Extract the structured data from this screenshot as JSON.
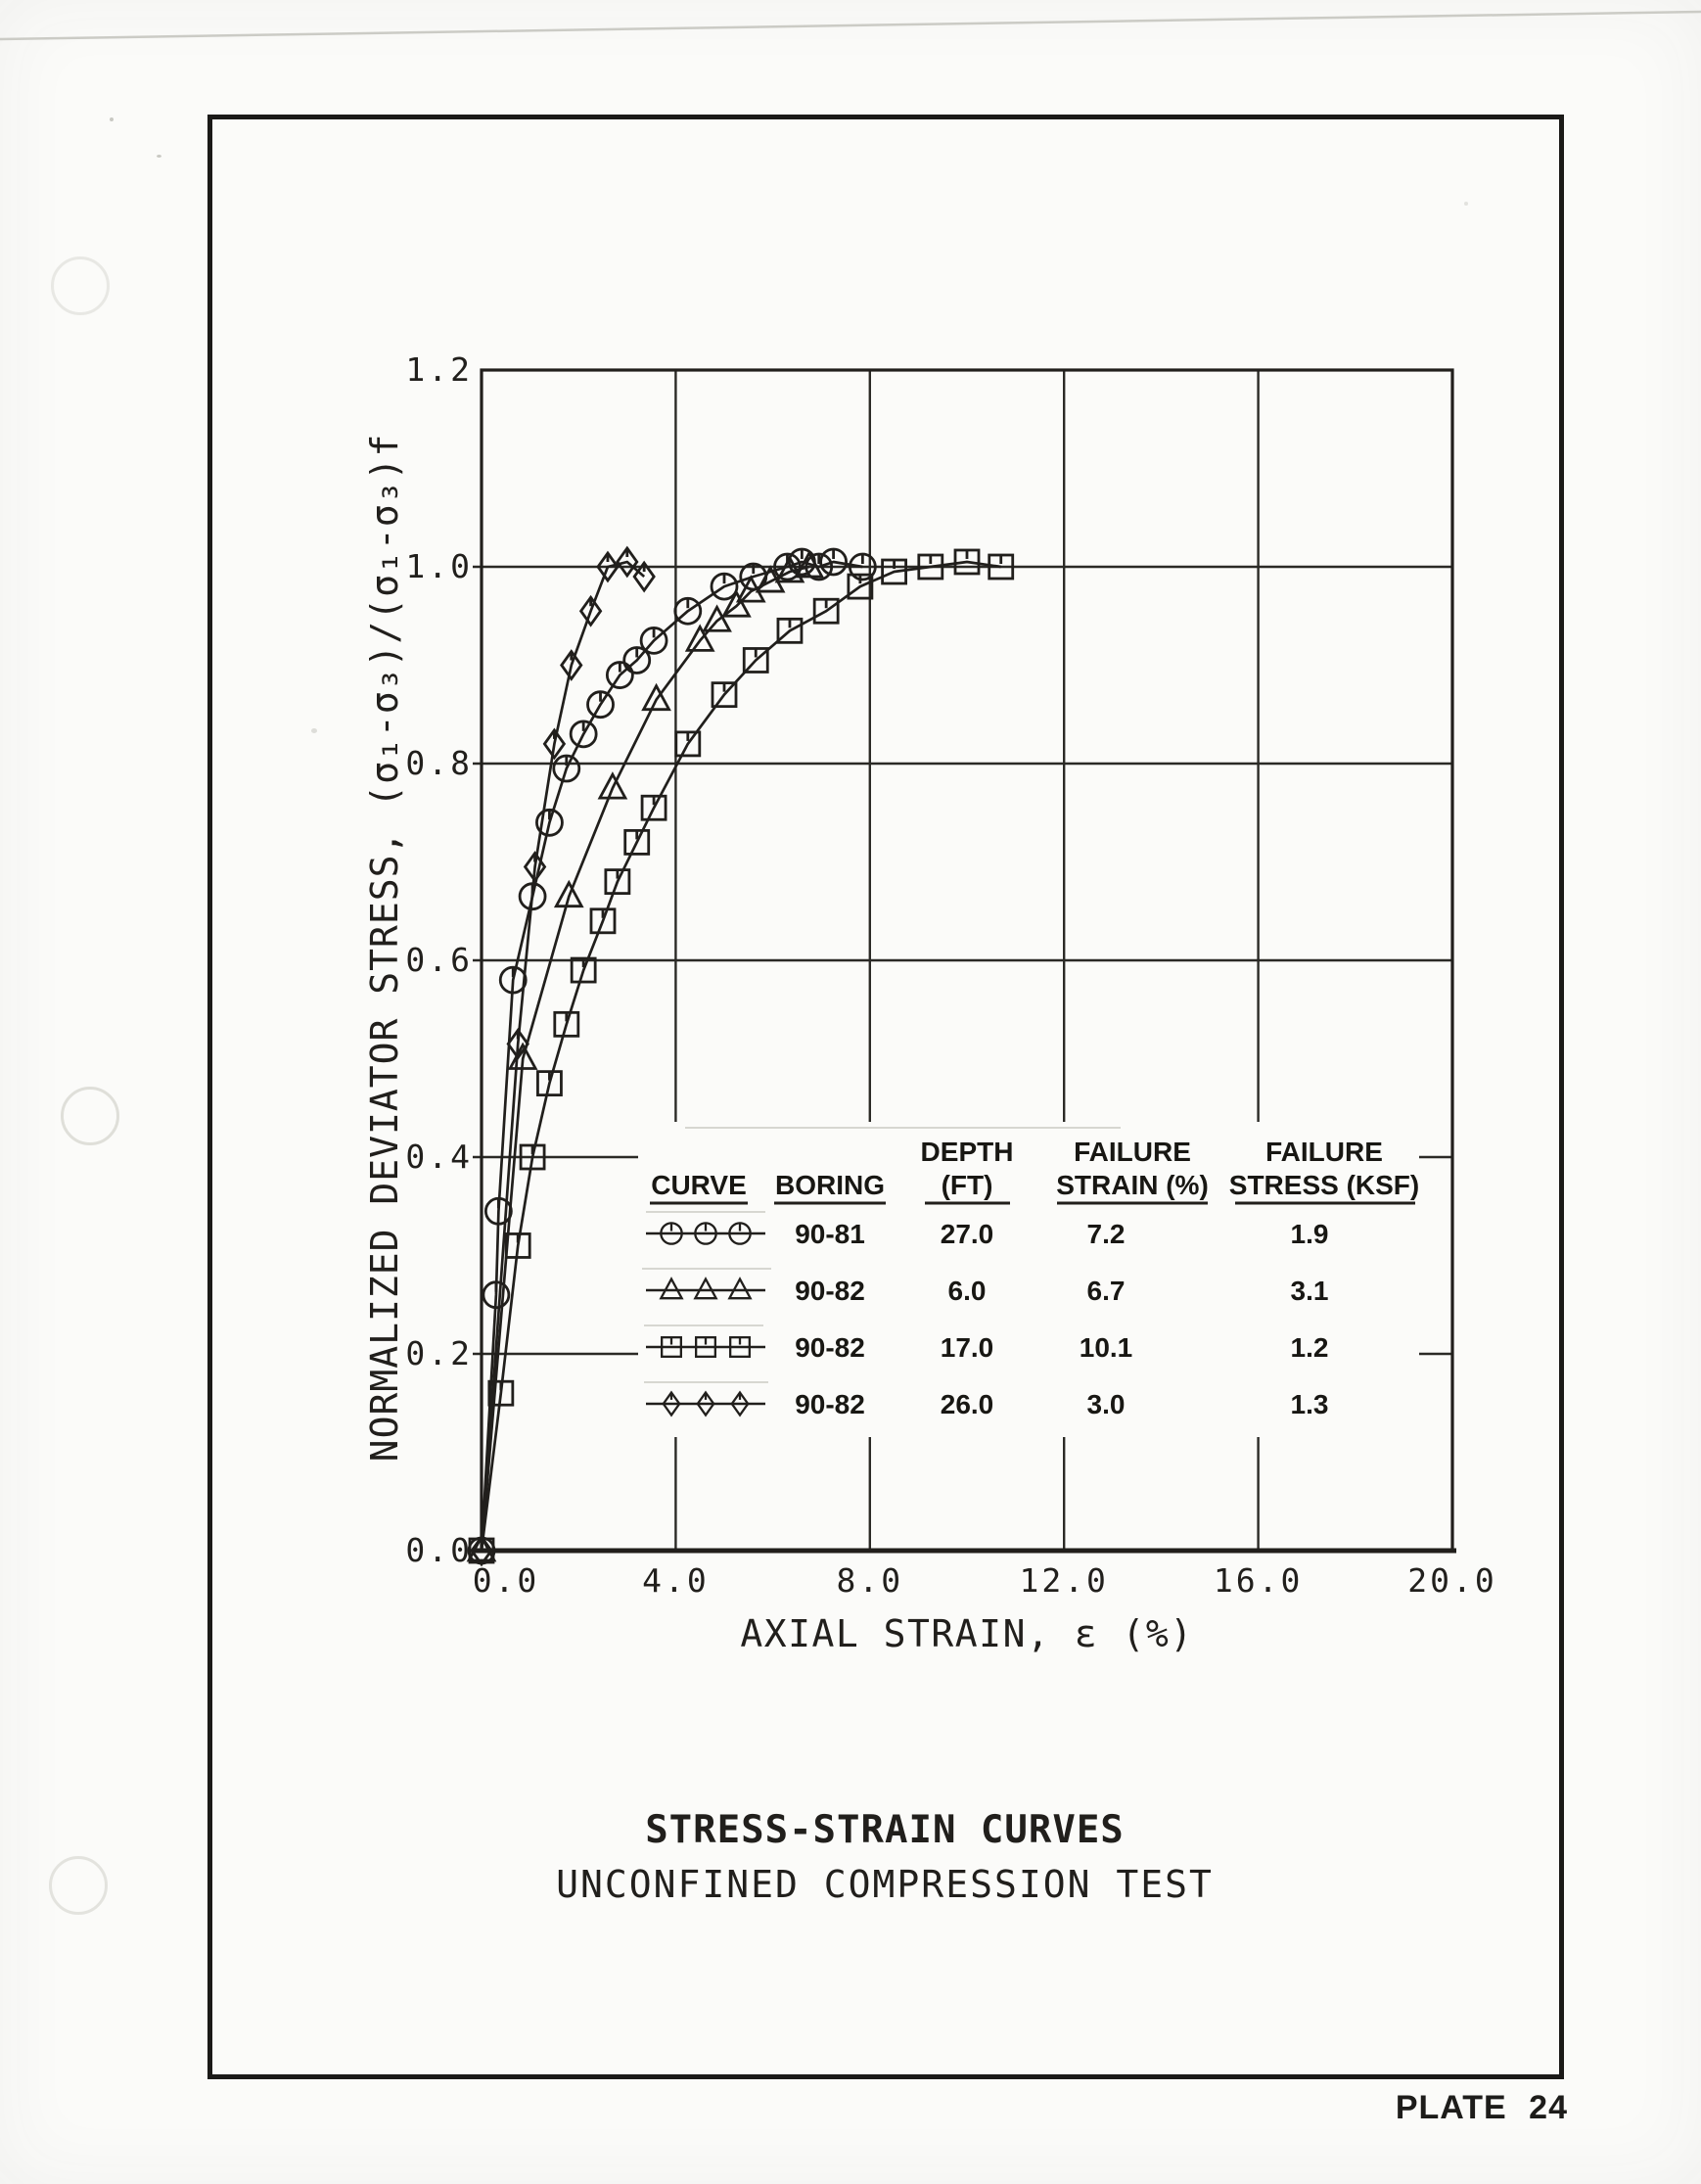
{
  "page": {
    "plate_label": "PLATE 24",
    "title_line1": "STRESS-STRAIN CURVES",
    "title_line2": "UNCONFINED COMPRESSION TEST",
    "ink_color": "#211f1c",
    "paper_color": "#fbfbf9"
  },
  "chart_data": {
    "type": "line",
    "title": "STRESS-STRAIN CURVES",
    "subtitle": "UNCONFINED COMPRESSION TEST",
    "xlabel": "AXIAL STRAIN, ε (%)",
    "ylabel": "NORMALIZED DEVIATOR STRESS, (σ₁-σ₃)/(σ₁-σ₃)f",
    "xlim": [
      0,
      20
    ],
    "ylim": [
      0,
      1.2
    ],
    "x_ticks": [
      0,
      4,
      8,
      12,
      16,
      20
    ],
    "x_tick_labels": [
      "0.0",
      "4.0",
      "8.0",
      "12.0",
      "16.0",
      "20.0"
    ],
    "y_ticks": [
      0,
      0.2,
      0.4,
      0.6,
      0.8,
      1.0,
      1.2
    ],
    "y_tick_labels": [
      "0.0",
      "0.2",
      "0.4",
      "0.6",
      "0.8",
      "1.0",
      "1.2"
    ],
    "grid": true,
    "legend": {
      "position": "inside-lower-right",
      "headers": [
        [
          "",
          "CURVE"
        ],
        [
          "",
          "BORING"
        ],
        [
          "DEPTH",
          "(FT)"
        ],
        [
          "FAILURE",
          "STRAIN (%)"
        ],
        [
          "FAILURE",
          "STRESS (KSF)"
        ]
      ]
    },
    "series": [
      {
        "marker": "circle",
        "boring": "90-81",
        "depth_ft": "27.0",
        "failure_strain_pct": "7.2",
        "failure_stress_ksf": "1.9",
        "points": [
          [
            0,
            0
          ],
          [
            0.3,
            0.26
          ],
          [
            0.35,
            0.345
          ],
          [
            0.65,
            0.58
          ],
          [
            1.05,
            0.665
          ],
          [
            1.4,
            0.74
          ],
          [
            1.75,
            0.795
          ],
          [
            2.1,
            0.83
          ],
          [
            2.45,
            0.86
          ],
          [
            2.85,
            0.89
          ],
          [
            3.2,
            0.905
          ],
          [
            3.55,
            0.925
          ],
          [
            4.25,
            0.955
          ],
          [
            5.0,
            0.98
          ],
          [
            5.6,
            0.99
          ],
          [
            6.3,
            1.0
          ],
          [
            6.6,
            1.005
          ],
          [
            6.95,
            1.0
          ],
          [
            7.25,
            1.005
          ],
          [
            7.85,
            1.0
          ]
        ]
      },
      {
        "marker": "triangle",
        "boring": "90-82",
        "depth_ft": "6.0",
        "failure_strain_pct": "6.7",
        "failure_stress_ksf": "3.1",
        "points": [
          [
            0,
            0
          ],
          [
            0.85,
            0.5
          ],
          [
            1.8,
            0.665
          ],
          [
            2.7,
            0.775
          ],
          [
            3.6,
            0.865
          ],
          [
            4.5,
            0.925
          ],
          [
            4.85,
            0.945
          ],
          [
            5.25,
            0.96
          ],
          [
            5.55,
            0.975
          ],
          [
            5.95,
            0.985
          ],
          [
            6.35,
            0.995
          ],
          [
            6.75,
            1.0
          ]
        ]
      },
      {
        "marker": "square",
        "boring": "90-82",
        "depth_ft": "17.0",
        "failure_strain_pct": "10.1",
        "failure_stress_ksf": "1.2",
        "points": [
          [
            0,
            0
          ],
          [
            0.4,
            0.16
          ],
          [
            0.75,
            0.31
          ],
          [
            1.05,
            0.4
          ],
          [
            1.4,
            0.475
          ],
          [
            1.75,
            0.535
          ],
          [
            2.1,
            0.59
          ],
          [
            2.5,
            0.64
          ],
          [
            2.8,
            0.68
          ],
          [
            3.2,
            0.72
          ],
          [
            3.55,
            0.755
          ],
          [
            4.25,
            0.82
          ],
          [
            5.0,
            0.87
          ],
          [
            5.65,
            0.905
          ],
          [
            6.35,
            0.935
          ],
          [
            7.1,
            0.955
          ],
          [
            7.8,
            0.98
          ],
          [
            8.5,
            0.995
          ],
          [
            9.25,
            1.0
          ],
          [
            10.0,
            1.005
          ],
          [
            10.7,
            1.0
          ]
        ]
      },
      {
        "marker": "diamond",
        "boring": "90-82",
        "depth_ft": "26.0",
        "failure_strain_pct": "3.0",
        "failure_stress_ksf": "1.3",
        "points": [
          [
            0,
            0
          ],
          [
            0.75,
            0.515
          ],
          [
            1.1,
            0.695
          ],
          [
            1.5,
            0.82
          ],
          [
            1.85,
            0.9
          ],
          [
            2.25,
            0.955
          ],
          [
            2.6,
            1.0
          ],
          [
            3.0,
            1.005
          ],
          [
            3.35,
            0.99
          ]
        ]
      }
    ]
  }
}
